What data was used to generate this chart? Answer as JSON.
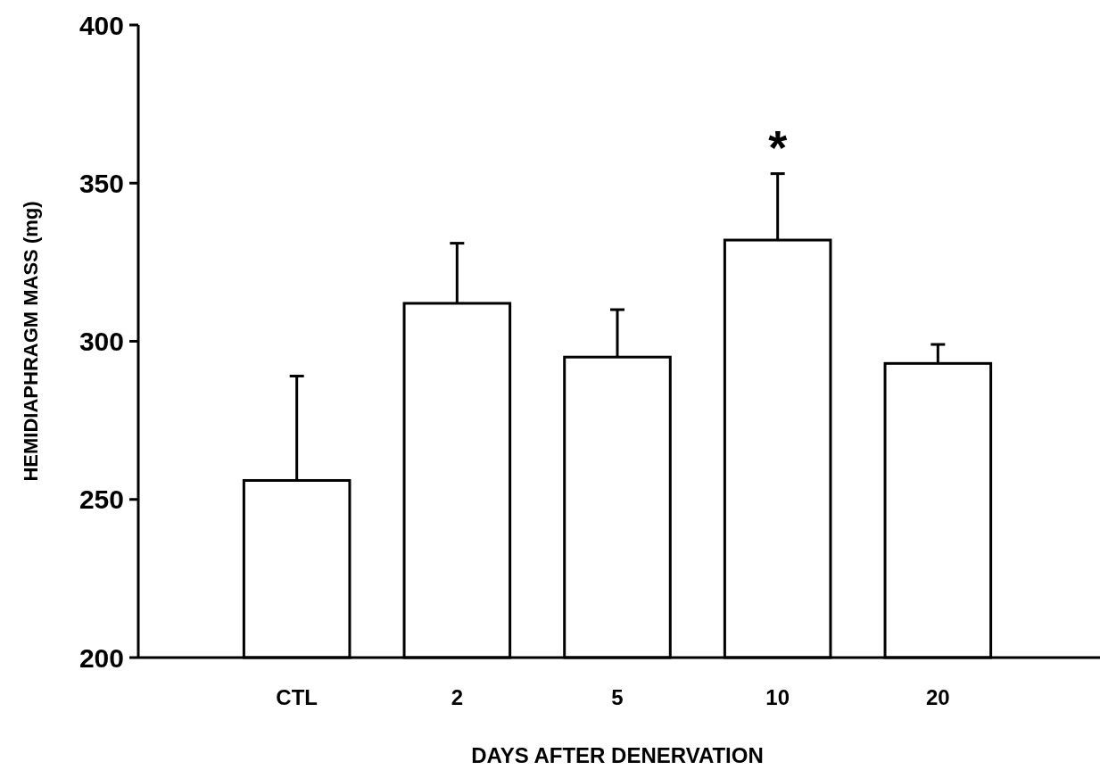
{
  "chart_data": {
    "type": "bar",
    "xlabel": "DAYS AFTER DENERVATION",
    "ylabel": "HEMIDIAPHRAGM MASS (mg)",
    "categories": [
      "CTL",
      "2",
      "5",
      "10",
      "20"
    ],
    "values": [
      256,
      312,
      295,
      332,
      293
    ],
    "errors": [
      [
        256,
        289
      ],
      [
        312,
        331
      ],
      [
        295,
        310
      ],
      [
        332,
        353
      ],
      [
        293,
        299
      ]
    ],
    "color": "#ffffff",
    "ylim": [
      200,
      400
    ],
    "yticks": [
      200,
      250,
      300,
      350,
      400
    ],
    "annotations": [
      "*"
    ],
    "grid": false
  }
}
